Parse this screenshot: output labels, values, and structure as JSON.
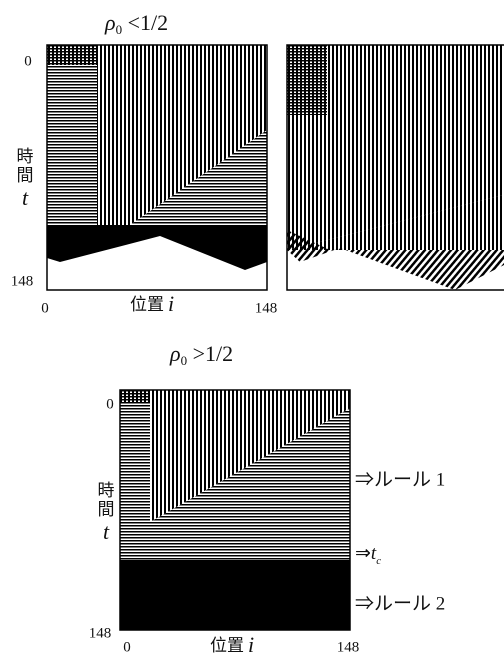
{
  "top": {
    "title": {
      "symbol": "ρ",
      "subscript": "0",
      "condition": " <1/2"
    },
    "y_axis": {
      "start": "0",
      "end": "148",
      "label_1": "時",
      "label_2": "間",
      "variable": "t"
    },
    "x_axis": {
      "start": "0",
      "end": "148",
      "label": "位置",
      "variable": "i"
    }
  },
  "bottom": {
    "title": {
      "symbol": "ρ",
      "subscript": "0",
      "condition": " >1/2"
    },
    "y_axis": {
      "start": "0",
      "end": "148",
      "label_1": "時",
      "label_2": "間",
      "variable": "t"
    },
    "x_axis": {
      "start": "0",
      "end": "148",
      "label": "位置",
      "variable": "i"
    },
    "annotations": {
      "rule_1": "⇒ルール 1",
      "critical": {
        "arrow": "⇒",
        "symbol": "t",
        "subscript": "c"
      },
      "rule_2": "⇒ルール 2"
    }
  }
}
